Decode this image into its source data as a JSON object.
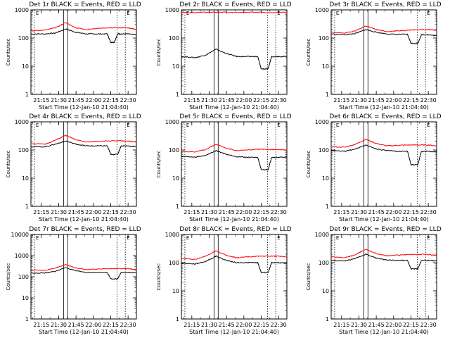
{
  "figure": {
    "x_tick_labels": [
      "21:15",
      "21:30",
      "21:45",
      "22:00",
      "22:15",
      "22:30"
    ]
  },
  "colors": {
    "events": "#000000",
    "lld": "#ff0000",
    "axis": "#000000"
  },
  "chart_data": [
    {
      "type": "line",
      "title": "Det 1r BLACK = Events, RED = LLD",
      "xlabel": "Start Time (12-Jan-10 21:04:40)",
      "ylabel": "Counts/sec",
      "ylim": [
        1,
        1000
      ],
      "yscale": "log",
      "y_tick_labels": [
        "1",
        "10",
        "100",
        "1000"
      ],
      "x_tick_labels": [
        "21:15",
        "21:30",
        "21:45",
        "22:00",
        "22:15",
        "22:30"
      ],
      "xlim": [
        21.1,
        22.62
      ],
      "series": [
        {
          "name": "Events",
          "color": "#000000",
          "x": [
            21.1,
            21.3,
            21.45,
            21.6,
            21.75,
            21.9,
            22.05,
            22.2,
            22.25,
            22.3,
            22.35,
            22.4,
            22.5,
            22.62
          ],
          "values": [
            140,
            140,
            150,
            210,
            160,
            140,
            140,
            140,
            70,
            70,
            140,
            140,
            140,
            130
          ]
        },
        {
          "name": "LLD",
          "color": "#ff0000",
          "x": [
            21.1,
            21.3,
            21.45,
            21.6,
            21.75,
            21.9,
            22.05,
            22.2,
            22.35,
            22.5,
            22.62
          ],
          "values": [
            180,
            190,
            230,
            350,
            230,
            200,
            220,
            230,
            230,
            230,
            200
          ]
        }
      ]
    },
    {
      "type": "line",
      "title": "Det 2r BLACK = Events, RED = LLD",
      "xlabel": "Start Time (12-Jan-10 21:04:40)",
      "ylabel": "Counts/sec",
      "ylim": [
        1,
        1000
      ],
      "yscale": "log",
      "y_tick_labels": [
        "1",
        "10",
        "100",
        "1000"
      ],
      "x_tick_labels": [
        "21:15",
        "21:30",
        "21:45",
        "22:00",
        "22:15",
        "22:30"
      ],
      "xlim": [
        21.1,
        22.62
      ],
      "series": [
        {
          "name": "Events",
          "color": "#000000",
          "x": [
            21.1,
            21.3,
            21.45,
            21.6,
            21.75,
            21.9,
            22.05,
            22.2,
            22.25,
            22.35,
            22.4,
            22.5,
            22.62
          ],
          "values": [
            22,
            20,
            25,
            40,
            28,
            22,
            22,
            22,
            8,
            8,
            22,
            22,
            22
          ]
        },
        {
          "name": "LLD",
          "color": "#ff0000",
          "x": [
            21.1,
            21.3,
            21.6,
            21.9,
            22.2,
            22.5,
            22.62
          ],
          "values": [
            820,
            800,
            830,
            810,
            820,
            800,
            810
          ]
        }
      ]
    },
    {
      "type": "line",
      "title": "Det 3r BLACK = Events, RED = LLD",
      "xlabel": "Start Time (12-Jan-10 21:04:40)",
      "ylabel": "Counts/sec",
      "ylim": [
        1,
        1000
      ],
      "yscale": "log",
      "y_tick_labels": [
        "1",
        "10",
        "100",
        "1000"
      ],
      "x_tick_labels": [
        "21:15",
        "21:30",
        "21:45",
        "22:00",
        "22:15",
        "22:30"
      ],
      "xlim": [
        21.1,
        22.62
      ],
      "series": [
        {
          "name": "Events",
          "color": "#000000",
          "x": [
            21.1,
            21.3,
            21.45,
            21.6,
            21.75,
            21.9,
            22.05,
            22.2,
            22.25,
            22.35,
            22.4,
            22.5,
            22.62
          ],
          "values": [
            140,
            130,
            145,
            200,
            160,
            140,
            135,
            135,
            65,
            65,
            130,
            130,
            120
          ]
        },
        {
          "name": "LLD",
          "color": "#ff0000",
          "x": [
            21.1,
            21.3,
            21.45,
            21.6,
            21.75,
            21.9,
            22.05,
            22.2,
            22.35,
            22.5,
            22.62
          ],
          "values": [
            160,
            150,
            180,
            270,
            200,
            170,
            180,
            190,
            200,
            200,
            190
          ]
        }
      ]
    },
    {
      "type": "line",
      "title": "Det 4r BLACK = Events, RED = LLD",
      "xlabel": "Start Time (12-Jan-10 21:04:40)",
      "ylabel": "Counts/sec",
      "ylim": [
        1,
        1000
      ],
      "yscale": "log",
      "y_tick_labels": [
        "1",
        "10",
        "100",
        "1000"
      ],
      "x_tick_labels": [
        "21:15",
        "21:30",
        "21:45",
        "22:00",
        "22:15",
        "22:30"
      ],
      "xlim": [
        21.1,
        22.62
      ],
      "series": [
        {
          "name": "Events",
          "color": "#000000",
          "x": [
            21.1,
            21.3,
            21.45,
            21.6,
            21.75,
            21.9,
            22.05,
            22.2,
            22.25,
            22.35,
            22.4,
            22.5,
            22.62
          ],
          "values": [
            130,
            130,
            160,
            210,
            160,
            140,
            140,
            140,
            70,
            70,
            140,
            140,
            130
          ]
        },
        {
          "name": "LLD",
          "color": "#ff0000",
          "x": [
            21.1,
            21.3,
            21.45,
            21.6,
            21.75,
            21.9,
            22.05,
            22.2,
            22.35,
            22.5,
            22.62
          ],
          "values": [
            170,
            160,
            220,
            330,
            230,
            190,
            200,
            210,
            210,
            210,
            190
          ]
        }
      ]
    },
    {
      "type": "line",
      "title": "Det 5r BLACK = Events, RED = LLD",
      "xlabel": "Start Time (12-Jan-10 21:04:40)",
      "ylabel": "Counts/sec",
      "ylim": [
        1,
        1000
      ],
      "yscale": "log",
      "y_tick_labels": [
        "1",
        "10",
        "100",
        "1000"
      ],
      "x_tick_labels": [
        "21:15",
        "21:30",
        "21:45",
        "22:00",
        "22:15",
        "22:30"
      ],
      "xlim": [
        21.1,
        22.62
      ],
      "series": [
        {
          "name": "Events",
          "color": "#000000",
          "x": [
            21.1,
            21.3,
            21.45,
            21.6,
            21.75,
            21.9,
            22.05,
            22.2,
            22.25,
            22.35,
            22.4,
            22.5,
            22.62
          ],
          "values": [
            60,
            55,
            65,
            95,
            70,
            58,
            55,
            55,
            20,
            20,
            55,
            55,
            55
          ]
        },
        {
          "name": "LLD",
          "color": "#ff0000",
          "x": [
            21.1,
            21.3,
            21.45,
            21.6,
            21.75,
            21.9,
            22.05,
            22.2,
            22.35,
            22.5,
            22.62
          ],
          "values": [
            90,
            85,
            105,
            160,
            115,
            95,
            100,
            105,
            105,
            105,
            100
          ]
        }
      ]
    },
    {
      "type": "line",
      "title": "Det 6r BLACK = Events, RED = LLD",
      "xlabel": "Start Time (12-Jan-10 21:04:40)",
      "ylabel": "Counts/sec",
      "ylim": [
        1,
        1000
      ],
      "yscale": "log",
      "y_tick_labels": [
        "1",
        "10",
        "100",
        "1000"
      ],
      "x_tick_labels": [
        "21:15",
        "21:30",
        "21:45",
        "22:00",
        "22:15",
        "22:30"
      ],
      "xlim": [
        21.1,
        22.62
      ],
      "series": [
        {
          "name": "Events",
          "color": "#000000",
          "x": [
            21.1,
            21.3,
            21.45,
            21.6,
            21.75,
            21.9,
            22.05,
            22.2,
            22.25,
            22.35,
            22.4,
            22.5,
            22.62
          ],
          "values": [
            95,
            90,
            110,
            150,
            110,
            95,
            90,
            90,
            30,
            30,
            90,
            90,
            85
          ]
        },
        {
          "name": "LLD",
          "color": "#ff0000",
          "x": [
            21.1,
            21.3,
            21.45,
            21.6,
            21.75,
            21.9,
            22.05,
            22.2,
            22.35,
            22.5,
            22.62
          ],
          "values": [
            130,
            125,
            160,
            240,
            170,
            140,
            145,
            150,
            150,
            150,
            140
          ]
        }
      ]
    },
    {
      "type": "line",
      "title": "Det 7r BLACK = Events, RED = LLD",
      "xlabel": "Start Time (12-Jan-10 21:04:40)",
      "ylabel": "Counts/sec",
      "ylim": [
        1,
        10000
      ],
      "yscale": "log",
      "y_tick_labels": [
        "1",
        "10",
        "100",
        "1000",
        "10000"
      ],
      "x_tick_labels": [
        "21:15",
        "21:30",
        "21:45",
        "22:00",
        "22:15",
        "22:30"
      ],
      "xlim": [
        21.1,
        22.62
      ],
      "series": [
        {
          "name": "Events",
          "color": "#000000",
          "x": [
            21.1,
            21.3,
            21.45,
            21.6,
            21.75,
            21.9,
            22.05,
            22.2,
            22.25,
            22.35,
            22.4,
            22.5,
            22.62
          ],
          "values": [
            150,
            150,
            180,
            270,
            190,
            160,
            160,
            160,
            80,
            80,
            160,
            160,
            150
          ]
        },
        {
          "name": "LLD",
          "color": "#ff0000",
          "x": [
            21.1,
            21.3,
            21.45,
            21.6,
            21.75,
            21.9,
            22.05,
            22.2,
            22.35,
            22.5,
            22.62
          ],
          "values": [
            210,
            200,
            260,
            370,
            260,
            220,
            230,
            240,
            240,
            240,
            220
          ]
        }
      ]
    },
    {
      "type": "line",
      "title": "Det 8r BLACK = Events, RED = LLD",
      "xlabel": "Start Time (12-Jan-10 21:04:40)",
      "ylabel": "Counts/sec",
      "ylim": [
        1,
        1000
      ],
      "yscale": "log",
      "y_tick_labels": [
        "1",
        "10",
        "100",
        "1000"
      ],
      "x_tick_labels": [
        "21:15",
        "21:30",
        "21:45",
        "22:00",
        "22:15",
        "22:30"
      ],
      "xlim": [
        21.1,
        22.62
      ],
      "series": [
        {
          "name": "Events",
          "color": "#000000",
          "x": [
            21.1,
            21.3,
            21.45,
            21.6,
            21.75,
            21.9,
            22.05,
            22.2,
            22.25,
            22.35,
            22.4,
            22.5,
            22.62
          ],
          "values": [
            95,
            90,
            110,
            170,
            120,
            100,
            100,
            100,
            45,
            45,
            100,
            100,
            95
          ]
        },
        {
          "name": "LLD",
          "color": "#ff0000",
          "x": [
            21.1,
            21.3,
            21.45,
            21.6,
            21.75,
            21.9,
            22.05,
            22.2,
            22.35,
            22.5,
            22.62
          ],
          "values": [
            140,
            130,
            170,
            260,
            180,
            150,
            160,
            170,
            170,
            170,
            160
          ]
        }
      ]
    },
    {
      "type": "line",
      "title": "Det 9r BLACK = Events, RED = LLD",
      "xlabel": "Start Time (12-Jan-10 21:04:40)",
      "ylabel": "Counts/sec",
      "ylim": [
        1,
        1000
      ],
      "yscale": "log",
      "y_tick_labels": [
        "1",
        "10",
        "100",
        "1000"
      ],
      "x_tick_labels": [
        "21:15",
        "21:30",
        "21:45",
        "22:00",
        "22:15",
        "22:30"
      ],
      "xlim": [
        21.1,
        22.62
      ],
      "series": [
        {
          "name": "Events",
          "color": "#000000",
          "x": [
            21.1,
            21.3,
            21.45,
            21.6,
            21.75,
            21.9,
            22.05,
            22.2,
            22.25,
            22.35,
            22.4,
            22.5,
            22.62
          ],
          "values": [
            120,
            115,
            140,
            200,
            145,
            125,
            120,
            120,
            60,
            60,
            120,
            120,
            115
          ]
        },
        {
          "name": "LLD",
          "color": "#ff0000",
          "x": [
            21.1,
            21.3,
            21.45,
            21.6,
            21.75,
            21.9,
            22.05,
            22.2,
            22.35,
            22.5,
            22.62
          ],
          "values": [
            160,
            150,
            190,
            300,
            210,
            175,
            185,
            195,
            195,
            195,
            180
          ]
        }
      ]
    }
  ]
}
